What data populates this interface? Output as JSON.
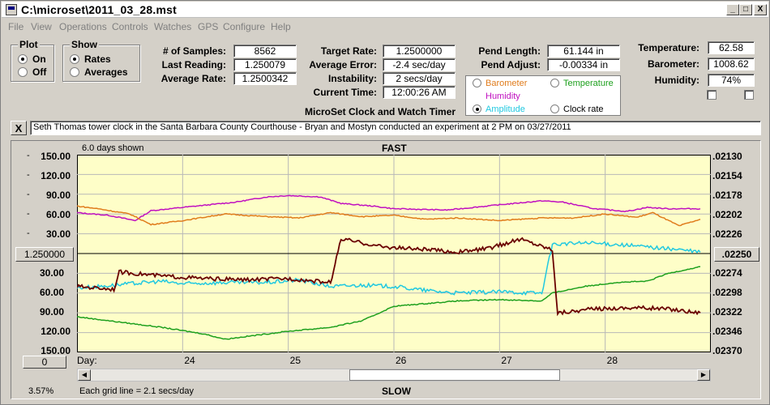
{
  "window": {
    "title": "C:\\microset\\2011_03_28.mst",
    "minimize": "_",
    "maximize": "□",
    "close": "X"
  },
  "menu": [
    "File",
    "View",
    "Operations",
    "Controls",
    "Watches",
    "GPS",
    "Configure",
    "Help"
  ],
  "plot_group": {
    "title": "Plot",
    "options": [
      {
        "label": "On",
        "selected": true
      },
      {
        "label": "Off",
        "selected": false
      }
    ]
  },
  "show_group": {
    "title": "Show",
    "options": [
      {
        "label": "Rates",
        "selected": true
      },
      {
        "label": "Averages",
        "selected": false
      }
    ]
  },
  "stats": {
    "samples_label": "# of Samples:",
    "samples_value": "8562",
    "last_reading_label": "Last Reading:",
    "last_reading_value": "1.250079",
    "average_rate_label": "Average Rate:",
    "average_rate_value": "1.2500342"
  },
  "rates": {
    "target_rate_label": "Target Rate:",
    "target_rate_value": "1.2500000",
    "average_error_label": "Average Error:",
    "average_error_value": "-2.4 sec/day",
    "instability_label": "Instability:",
    "instability_value": "2 secs/day",
    "current_time_label": "Current Time:",
    "current_time_value": "12:00:26 AM"
  },
  "app_caption": "MicroSet Clock and Watch Timer",
  "pendulum": {
    "length_label": "Pend Length:",
    "length_value": "61.144 in",
    "adjust_label": "Pend Adjust:",
    "adjust_value": "-0.00334 in"
  },
  "environment": {
    "temperature_label": "Temperature:",
    "temperature_value": "62.58",
    "barometer_label": "Barometer:",
    "barometer_value": "1008.62",
    "humidity_label": "Humidity:",
    "humidity_value": "74%"
  },
  "series_selector": [
    {
      "label": "Barometer",
      "color": "#e07c1c",
      "selected": false
    },
    {
      "label": "Temperature",
      "color": "#1ea01e",
      "selected": false
    },
    {
      "label": "Humidity",
      "color": "#c010c0",
      "selected": false
    },
    {
      "label": "Amplitude",
      "color": "#20c8e0",
      "selected": true
    },
    {
      "label": "Clock rate",
      "color": "#000000",
      "selected": false
    }
  ],
  "note": {
    "clear_label": "X",
    "text": "Seth Thomas tower clock in the Santa Barbara County Courthouse - Bryan and Mostyn conducted an experiment at 2 PM on 03/27/2011"
  },
  "chart": {
    "days_shown": "6.0 days shown",
    "top_label": "FAST",
    "bottom_label": "SLOW",
    "left_ticks_upper": [
      "150.00",
      "120.00",
      "90.00",
      "60.00",
      "30.00"
    ],
    "center_value": "1.250000",
    "left_ticks_lower": [
      "30.00",
      "60.00",
      "90.00",
      "120.00",
      "150.00"
    ],
    "right_ticks_upper": [
      ".02130",
      ".02154",
      ".02178",
      ".02202",
      ".02226"
    ],
    "right_center": ".02250",
    "right_ticks_lower": [
      ".02274",
      ".02298",
      ".02322",
      ".02346",
      ".02370"
    ],
    "x_prefix": "Day:",
    "x_days": [
      "24",
      "25",
      "26",
      "27",
      "28"
    ],
    "bottom_left_button": "0",
    "zoom_percent": "3.57%",
    "grid_note": "Each grid line = 2.1 secs/day",
    "scroll_position": 0.65,
    "colors": {
      "background": "#fefec8",
      "grid": "#b8b8b8",
      "barometer": "#e07c1c",
      "temperature": "#1ea01e",
      "humidity": "#c010c0",
      "amplitude": "#20c8e0",
      "clock_rate": "#6a0000"
    }
  },
  "chart_data": {
    "type": "line",
    "x_label": "Day:",
    "x_range": [
      23.0,
      29.0
    ],
    "series": [
      {
        "name": "Humidity",
        "color": "#c010c0",
        "points": [
          [
            23.0,
            62
          ],
          [
            23.3,
            58
          ],
          [
            23.55,
            50
          ],
          [
            23.7,
            65
          ],
          [
            24.0,
            70
          ],
          [
            24.5,
            78
          ],
          [
            24.8,
            86
          ],
          [
            25.0,
            88
          ],
          [
            25.3,
            86
          ],
          [
            25.5,
            76
          ],
          [
            25.8,
            72
          ],
          [
            26.0,
            68
          ],
          [
            26.5,
            66
          ],
          [
            27.0,
            74
          ],
          [
            27.4,
            80
          ],
          [
            27.6,
            78
          ],
          [
            27.9,
            68
          ],
          [
            28.2,
            64
          ],
          [
            28.4,
            70
          ],
          [
            28.6,
            68
          ],
          [
            28.9,
            68
          ]
        ]
      },
      {
        "name": "Barometer",
        "color": "#e07c1c",
        "points": [
          [
            23.0,
            72
          ],
          [
            23.2,
            68
          ],
          [
            23.5,
            60
          ],
          [
            23.7,
            44
          ],
          [
            24.0,
            50
          ],
          [
            24.4,
            60
          ],
          [
            24.8,
            56
          ],
          [
            25.1,
            54
          ],
          [
            25.4,
            62
          ],
          [
            25.7,
            56
          ],
          [
            26.0,
            58
          ],
          [
            26.3,
            52
          ],
          [
            26.6,
            54
          ],
          [
            27.0,
            50
          ],
          [
            27.4,
            54
          ],
          [
            27.7,
            54
          ],
          [
            28.0,
            60
          ],
          [
            28.3,
            55
          ],
          [
            28.45,
            62
          ],
          [
            28.7,
            42
          ],
          [
            28.9,
            52
          ]
        ]
      },
      {
        "name": "Temperature",
        "color": "#1ea01e",
        "points": [
          [
            23.0,
            -96
          ],
          [
            23.4,
            -104
          ],
          [
            23.8,
            -112
          ],
          [
            24.2,
            -122
          ],
          [
            24.4,
            -130
          ],
          [
            24.7,
            -124
          ],
          [
            25.0,
            -118
          ],
          [
            25.4,
            -112
          ],
          [
            25.7,
            -102
          ],
          [
            26.0,
            -80
          ],
          [
            26.3,
            -76
          ],
          [
            26.6,
            -72
          ],
          [
            27.0,
            -70
          ],
          [
            27.4,
            -72
          ],
          [
            27.5,
            -60
          ],
          [
            27.8,
            -50
          ],
          [
            28.1,
            -44
          ],
          [
            28.4,
            -42
          ],
          [
            28.6,
            -30
          ],
          [
            28.9,
            -20
          ]
        ]
      },
      {
        "name": "Amplitude",
        "color": "#20c8e0",
        "points": [
          [
            23.0,
            -52
          ],
          [
            23.2,
            -50
          ],
          [
            23.5,
            -46
          ],
          [
            23.8,
            -42
          ],
          [
            24.0,
            -46
          ],
          [
            24.4,
            -44
          ],
          [
            24.8,
            -44
          ],
          [
            25.1,
            -40
          ],
          [
            25.4,
            -50
          ],
          [
            25.7,
            -48
          ],
          [
            26.0,
            -50
          ],
          [
            26.3,
            -56
          ],
          [
            26.6,
            -60
          ],
          [
            27.0,
            -58
          ],
          [
            27.4,
            -60
          ],
          [
            27.5,
            14
          ],
          [
            27.8,
            16
          ],
          [
            28.1,
            14
          ],
          [
            28.4,
            10
          ],
          [
            28.7,
            6
          ],
          [
            28.9,
            2
          ]
        ]
      },
      {
        "name": "Clock rate",
        "color": "#6a0000",
        "points": [
          [
            23.0,
            -50
          ],
          [
            23.35,
            -54
          ],
          [
            23.4,
            -28
          ],
          [
            23.8,
            -34
          ],
          [
            24.2,
            -38
          ],
          [
            24.6,
            -40
          ],
          [
            25.0,
            -38
          ],
          [
            25.4,
            -44
          ],
          [
            25.5,
            22
          ],
          [
            25.9,
            10
          ],
          [
            26.3,
            6
          ],
          [
            26.6,
            2
          ],
          [
            26.9,
            8
          ],
          [
            27.2,
            22
          ],
          [
            27.5,
            6
          ],
          [
            27.55,
            -90
          ],
          [
            27.9,
            -84
          ],
          [
            28.3,
            -82
          ],
          [
            28.6,
            -84
          ],
          [
            28.9,
            -90
          ]
        ]
      }
    ]
  }
}
